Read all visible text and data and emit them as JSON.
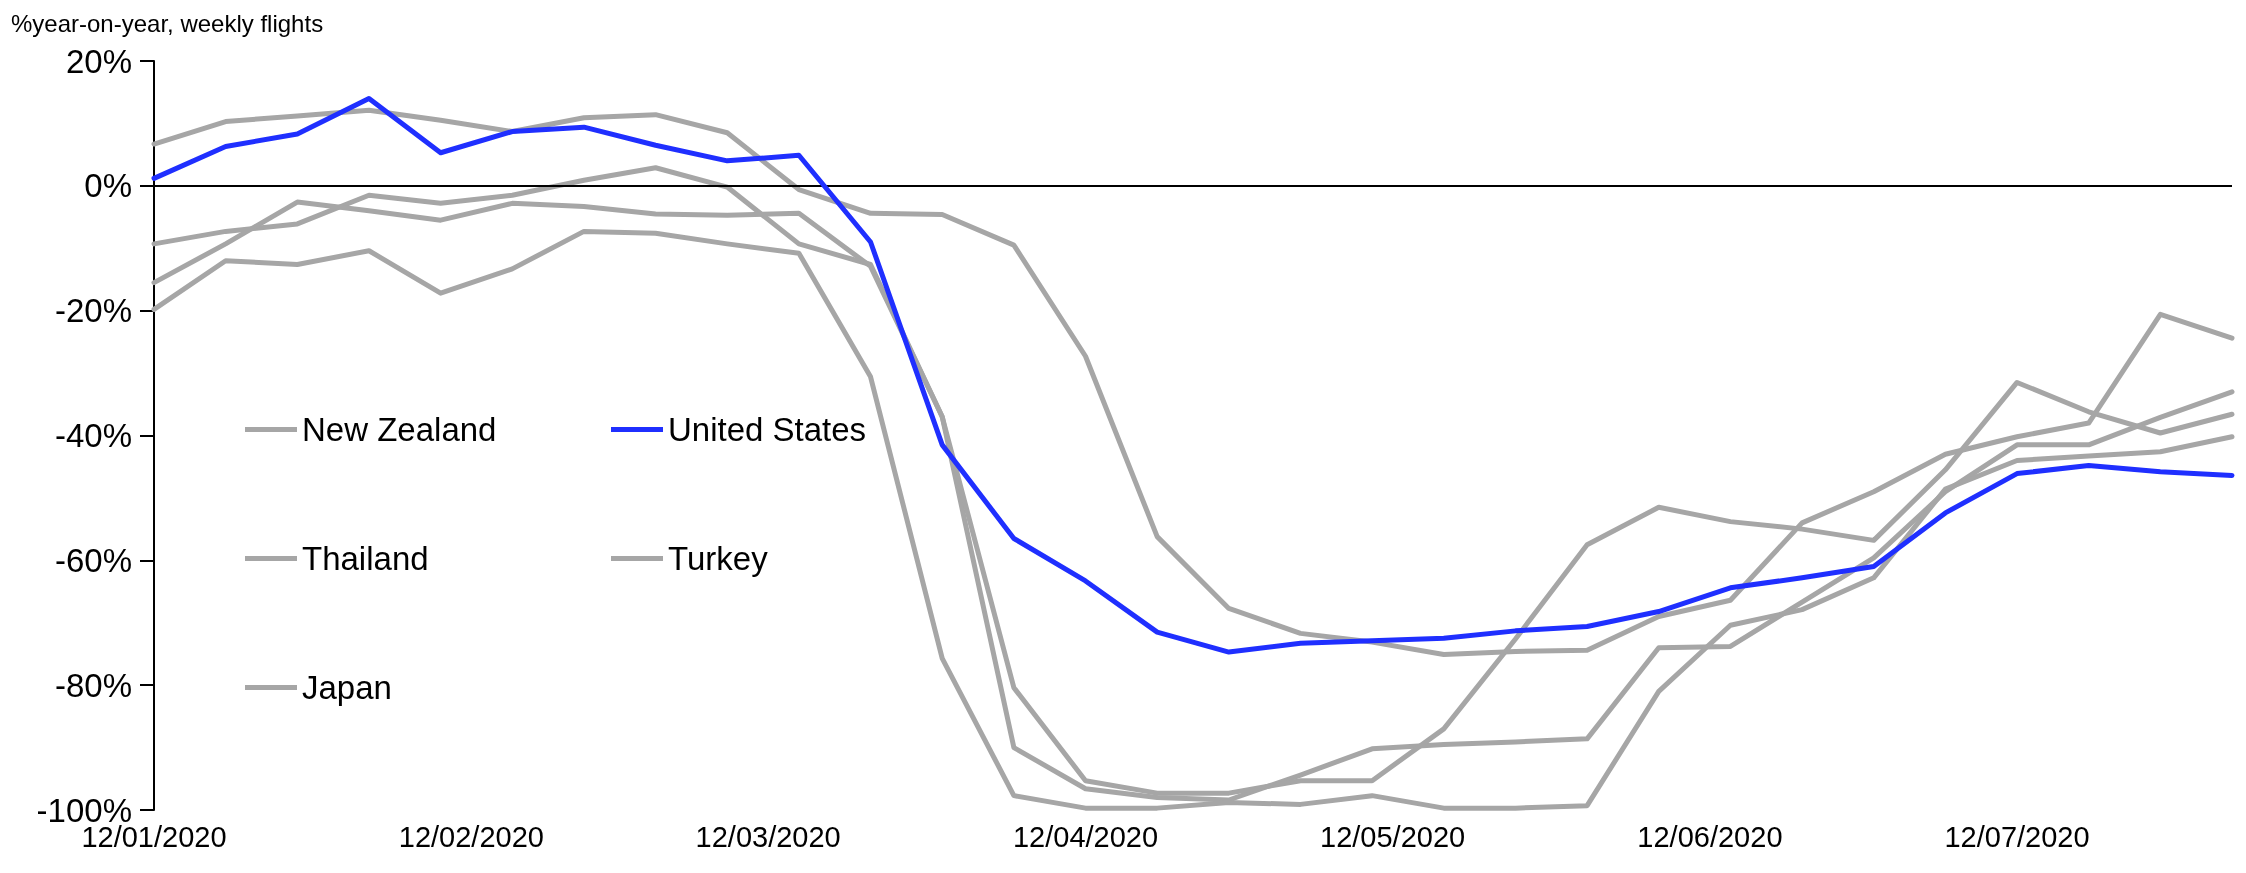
{
  "chart_data": {
    "type": "line",
    "ylabel": "%year-on-year, weekly flights",
    "x": [
      "2020-01-12",
      "2020-01-19",
      "2020-01-26",
      "2020-02-02",
      "2020-02-09",
      "2020-02-16",
      "2020-02-23",
      "2020-03-01",
      "2020-03-08",
      "2020-03-15",
      "2020-03-22",
      "2020-03-29",
      "2020-04-05",
      "2020-04-12",
      "2020-04-19",
      "2020-04-26",
      "2020-05-03",
      "2020-05-10",
      "2020-05-17",
      "2020-05-24",
      "2020-05-31",
      "2020-06-07",
      "2020-06-14",
      "2020-06-21",
      "2020-06-28",
      "2020-07-05",
      "2020-07-12",
      "2020-07-19",
      "2020-07-26",
      "2020-08-02"
    ],
    "series": [
      {
        "name": "New Zealand",
        "color": "#a6a6a6",
        "values": [
          6.7,
          10.3,
          11.2,
          12.1,
          10.5,
          8.7,
          10.9,
          11.4,
          8.5,
          -0.6,
          -4.4,
          -4.6,
          -9.5,
          -27.3,
          -56.2,
          -67.7,
          -71.7,
          -73.1,
          -75.1,
          -74.6,
          -74.4,
          -69,
          -66.4,
          -54,
          -49,
          -43,
          -40.2,
          -38,
          -20.6,
          -24.4
        ]
      },
      {
        "name": "United States",
        "color": "#1f2fff",
        "values": [
          1.2,
          6.3,
          8.3,
          14,
          5.3,
          8.7,
          9.4,
          6.5,
          4,
          4.9,
          -9,
          -41.5,
          -56.5,
          -63.3,
          -71.5,
          -74.7,
          -73.3,
          -72.9,
          -72.5,
          -71.3,
          -70.6,
          -68.2,
          -64.4,
          -62.8,
          -61,
          -52.4,
          -46.1,
          -44.8,
          -45.8,
          -46.4
        ]
      },
      {
        "name": "Thailand",
        "color": "#a6a6a6",
        "values": [
          -9.3,
          -7.3,
          -6.1,
          -1.5,
          -2.8,
          -1.5,
          0.9,
          2.9,
          -0.2,
          -9.3,
          -12.6,
          -37,
          -90,
          -96.6,
          -98,
          -98.4,
          -94.4,
          -90.2,
          -89.5,
          -89.1,
          -88.6,
          -74,
          -73.8,
          -66.7,
          -59.6,
          -49,
          -41.5,
          -41.5,
          -37.1,
          -33
        ]
      },
      {
        "name": "Turkey",
        "color": "#a6a6a6",
        "values": [
          -15.5,
          -9.3,
          -2.6,
          -4,
          -5.5,
          -2.8,
          -3.3,
          -4.5,
          -4.7,
          -4.4,
          -12.9,
          -37,
          -80.4,
          -95.3,
          -97.3,
          -97.3,
          -95.3,
          -95.3,
          -87,
          -72.6,
          -57.5,
          -51.5,
          -53.8,
          -55,
          -56.8,
          -45.5,
          -31.5,
          -36.2,
          -39.6,
          -36.6
        ]
      },
      {
        "name": "Japan",
        "color": "#a6a6a6",
        "values": [
          -19.8,
          -12,
          -12.6,
          -10.4,
          -17.2,
          -13.3,
          -7.3,
          -7.6,
          -9.3,
          -10.8,
          -30.6,
          -75.7,
          -97.7,
          -99.7,
          -99.7,
          -98.8,
          -99.1,
          -97.7,
          -99.7,
          -99.7,
          -99.3,
          -81,
          -70.4,
          -67.9,
          -62.8,
          -48.6,
          -44,
          -43.3,
          -42.6,
          -40.2
        ]
      }
    ],
    "xlim": [
      "2020-01-12",
      "2020-08-02"
    ],
    "xticks": [
      {
        "value": "2020-01-12",
        "label": "12/01/2020"
      },
      {
        "value": "2020-02-12",
        "label": "12/02/2020"
      },
      {
        "value": "2020-03-12",
        "label": "12/03/2020"
      },
      {
        "value": "2020-04-12",
        "label": "12/04/2020"
      },
      {
        "value": "2020-05-12",
        "label": "12/05/2020"
      },
      {
        "value": "2020-06-12",
        "label": "12/06/2020"
      },
      {
        "value": "2020-07-12",
        "label": "12/07/2020"
      }
    ],
    "ylim": [
      -100,
      20
    ],
    "yticks": [
      {
        "value": -100,
        "label": "-100%"
      },
      {
        "value": -80,
        "label": "-80%"
      },
      {
        "value": -60,
        "label": "-60%"
      },
      {
        "value": -40,
        "label": "-40%"
      },
      {
        "value": -20,
        "label": "-20%"
      },
      {
        "value": 0,
        "label": "0%"
      },
      {
        "value": 20,
        "label": "20%"
      }
    ],
    "ref_lines": [
      {
        "axis": "y",
        "value": 0,
        "color": "#000000"
      }
    ],
    "legend": "left",
    "grid": false,
    "marker": "none",
    "line_style": "solid"
  }
}
